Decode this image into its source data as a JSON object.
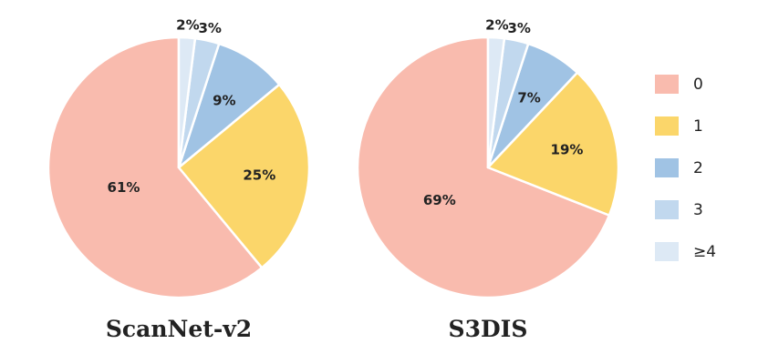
{
  "chart_data": [
    {
      "type": "pie",
      "title": "ScanNet-v2",
      "categories": [
        "0",
        "1",
        "2",
        "3",
        "≥4"
      ],
      "values": [
        61,
        25,
        9,
        3,
        2
      ],
      "labels": [
        "61%",
        "25%",
        "9%",
        "3%",
        "2%"
      ]
    },
    {
      "type": "pie",
      "title": "S3DIS",
      "categories": [
        "0",
        "1",
        "2",
        "3",
        "≥4"
      ],
      "values": [
        69,
        19,
        7,
        3,
        2
      ],
      "labels": [
        "69%",
        "19%",
        "7%",
        "3%",
        "2%"
      ]
    }
  ],
  "legend": {
    "placement": "right",
    "items": [
      {
        "label": "0",
        "color": "#F9BBAE"
      },
      {
        "label": "1",
        "color": "#FBD66A"
      },
      {
        "label": "2",
        "color": "#A0C3E4"
      },
      {
        "label": "3",
        "color": "#C1D8EE"
      },
      {
        "label": "≥4",
        "color": "#DDE9F5"
      }
    ]
  }
}
